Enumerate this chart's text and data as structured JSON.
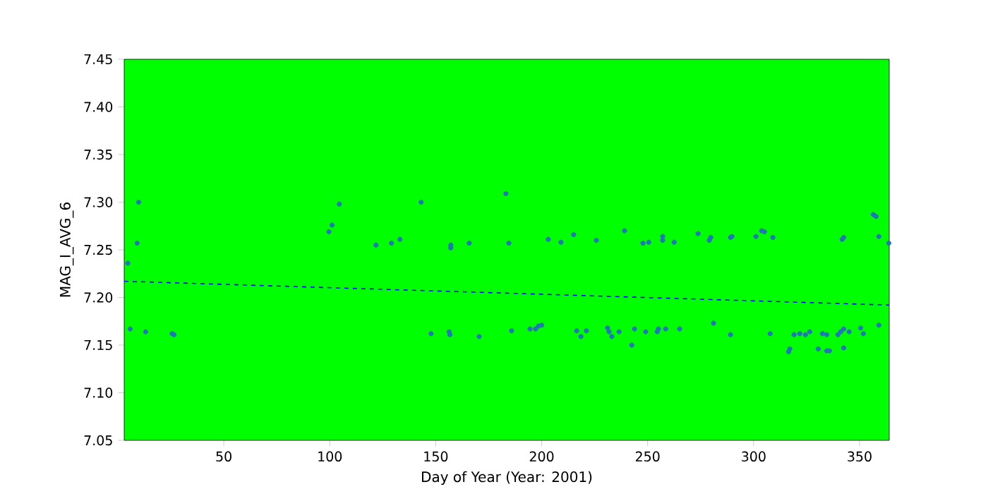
{
  "chart_data": {
    "type": "scatter",
    "xlabel": "Day of Year (Year: 2001)",
    "ylabel": "MAG_I_AVG_6",
    "xlim": [
      3,
      364
    ],
    "ylim": [
      7.05,
      7.45
    ],
    "xticks": [
      50,
      100,
      150,
      200,
      250,
      300,
      350
    ],
    "yticks": [
      7.05,
      {
        "value": 7.1,
        "label": "7.10"
      },
      7.15,
      {
        "value": 7.2,
        "label": "7.20"
      },
      7.25,
      {
        "value": 7.3,
        "label": "7.30"
      },
      7.35,
      {
        "value": 7.4,
        "label": "7.40"
      },
      7.45
    ],
    "grid": false,
    "series": [
      {
        "color": "#1f77b4",
        "marker": "circle",
        "x": [
          4.7,
          9.8,
          9.1,
          5.8,
          13.1,
          25.6,
          26.5,
          99.6,
          101.1,
          104.5,
          121.8,
          129.1,
          133.1,
          143.1,
          147.8,
          156.3,
          156.7,
          157.1,
          157.1,
          165.8,
          170.5,
          183.1,
          184.5,
          185.8,
          194.5,
          197.1,
          198.5,
          200,
          203.1,
          209.1,
          215.1,
          216.5,
          218.5,
          221.1,
          225.8,
          231.1,
          231.8,
          233.1,
          236.5,
          239.1,
          242.5,
          243.8,
          247.8,
          250.5,
          249.1,
          254.5,
          255.1,
          257.1,
          257.1,
          258.5,
          262.5,
          265.1,
          273.8,
          279.1,
          279.8,
          281.1,
          289.1,
          289.1,
          289.8,
          301.1,
          303.8,
          305.1,
          307.8,
          309.1,
          317.1,
          316.5,
          319.1,
          321.8,
          324.5,
          326.5,
          330.5,
          332.5,
          334.5,
          334.5,
          335.8,
          339.8,
          341.1,
          341.8,
          342.5,
          342.5,
          342.5,
          345.1,
          350.5,
          351.8,
          356.5,
          357.8,
          359.1,
          359.1,
          363.8
        ],
        "values": [
          7.236,
          7.3,
          7.257,
          7.167,
          7.164,
          7.162,
          7.161,
          7.269,
          7.276,
          7.298,
          7.255,
          7.257,
          7.261,
          7.3,
          7.162,
          7.164,
          7.161,
          7.255,
          7.252,
          7.257,
          7.159,
          7.309,
          7.257,
          7.165,
          7.167,
          7.167,
          7.17,
          7.171,
          7.261,
          7.258,
          7.266,
          7.165,
          7.159,
          7.165,
          7.26,
          7.168,
          7.164,
          7.159,
          7.164,
          7.27,
          7.15,
          7.167,
          7.257,
          7.258,
          7.164,
          7.164,
          7.167,
          7.264,
          7.26,
          7.167,
          7.258,
          7.167,
          7.267,
          7.26,
          7.263,
          7.173,
          7.161,
          7.263,
          7.264,
          7.264,
          7.27,
          7.269,
          7.162,
          7.263,
          7.146,
          7.143,
          7.161,
          7.162,
          7.161,
          7.164,
          7.146,
          7.162,
          7.161,
          7.144,
          7.144,
          7.161,
          7.164,
          7.261,
          7.263,
          7.167,
          7.147,
          7.164,
          7.168,
          7.162,
          7.287,
          7.285,
          7.264,
          7.171,
          7.257
        ]
      },
      {
        "type": "line",
        "color": "#0000ff",
        "line_style": "dashed",
        "marker": "none",
        "x": [
          3,
          364
        ],
        "values": [
          7.217,
          7.192
        ]
      }
    ]
  }
}
